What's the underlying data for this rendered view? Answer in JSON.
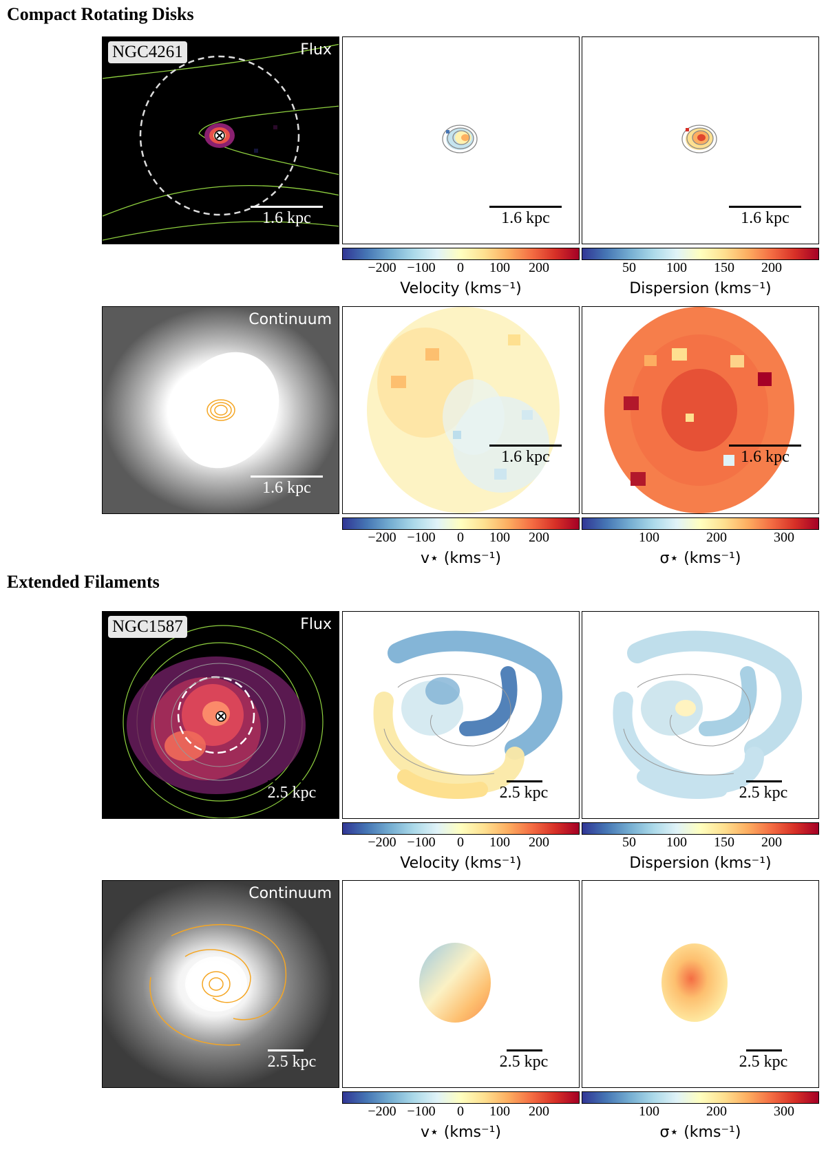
{
  "sections": [
    {
      "title": "Compact Rotating Disks",
      "galaxy": "NGC4261",
      "scale": "1.6 kpc"
    },
    {
      "title": "Extended Filaments",
      "galaxy": "NGC1587",
      "scale": "2.5 kpc"
    }
  ],
  "labels": {
    "flux": "Flux",
    "continuum": "Continuum"
  },
  "colorbars": {
    "velocity": {
      "ticks": [
        "−200",
        "−100",
        "0",
        "100",
        "200"
      ],
      "label": "Velocity (kms⁻¹)"
    },
    "dispersion": {
      "ticks": [
        "50",
        "100",
        "150",
        "200"
      ],
      "label": "Dispersion (kms⁻¹)"
    },
    "v_star": {
      "ticks": [
        "−200",
        "−100",
        "0",
        "100",
        "200"
      ],
      "label": "v⋆ (kms⁻¹)"
    },
    "sigma_star": {
      "ticks": [
        "100",
        "200",
        "300"
      ],
      "label": "σ⋆ (kms⁻¹)"
    }
  },
  "colors": {
    "cmap": [
      "#313695",
      "#4575b4",
      "#74add1",
      "#abd9e9",
      "#e0f3f8",
      "#ffffbf",
      "#fee090",
      "#fdae61",
      "#f46d43",
      "#d73027",
      "#a50026"
    ],
    "contour_gas": "#f5a623",
    "contour_green": "#8fd13f"
  }
}
